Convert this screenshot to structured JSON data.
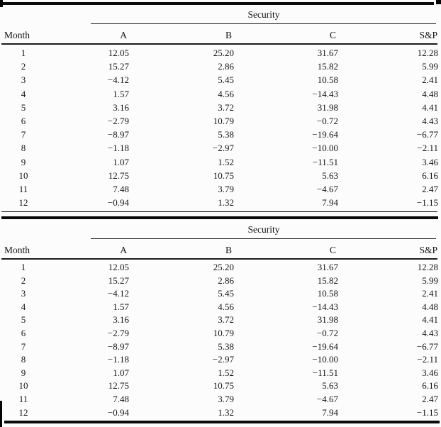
{
  "page": {
    "background": "#fcfcfc",
    "text_color": "#141414",
    "rule_color": "#0a0a0a"
  },
  "tables": [
    {
      "group_header": "Security",
      "columns": [
        "Month",
        "A",
        "B",
        "C",
        "S&P"
      ],
      "rows": [
        [
          "1",
          "12.05",
          "25.20",
          "31.67",
          "12.28"
        ],
        [
          "2",
          "15.27",
          "2.86",
          "15.82",
          "5.99"
        ],
        [
          "3",
          "−4.12",
          "5.45",
          "10.58",
          "2.41"
        ],
        [
          "4",
          "1.57",
          "4.56",
          "−14.43",
          "4.48"
        ],
        [
          "5",
          "3.16",
          "3.72",
          "31.98",
          "4.41"
        ],
        [
          "6",
          "−2.79",
          "10.79",
          "−0.72",
          "4.43"
        ],
        [
          "7",
          "−8.97",
          "5.38",
          "−19.64",
          "−6.77"
        ],
        [
          "8",
          "−1.18",
          "−2.97",
          "−10.00",
          "−2.11"
        ],
        [
          "9",
          "1.07",
          "1.52",
          "−11.51",
          "3.46"
        ],
        [
          "10",
          "12.75",
          "10.75",
          "5.63",
          "6.16"
        ],
        [
          "11",
          "7.48",
          "3.79",
          "−4.67",
          "2.47"
        ],
        [
          "12",
          "−0.94",
          "1.32",
          "7.94",
          "−1.15"
        ]
      ]
    },
    {
      "group_header": "Security",
      "columns": [
        "Month",
        "A",
        "B",
        "C",
        "S&P"
      ],
      "rows": [
        [
          "1",
          "12.05",
          "25.20",
          "31.67",
          "12.28"
        ],
        [
          "2",
          "15.27",
          "2.86",
          "15.82",
          "5.99"
        ],
        [
          "3",
          "−4.12",
          "5.45",
          "10.58",
          "2.41"
        ],
        [
          "4",
          "1.57",
          "4.56",
          "−14.43",
          "4.48"
        ],
        [
          "5",
          "3.16",
          "3.72",
          "31.98",
          "4.41"
        ],
        [
          "6",
          "−2.79",
          "10.79",
          "−0.72",
          "4.43"
        ],
        [
          "7",
          "−8.97",
          "5.38",
          "−19.64",
          "−6.77"
        ],
        [
          "8",
          "−1.18",
          "−2.97",
          "−10.00",
          "−2.11"
        ],
        [
          "9",
          "1.07",
          "1.52",
          "−11.51",
          "3.46"
        ],
        [
          "10",
          "12.75",
          "10.75",
          "5.63",
          "6.16"
        ],
        [
          "11",
          "7.48",
          "3.79",
          "−4.67",
          "2.47"
        ],
        [
          "12",
          "−0.94",
          "1.32",
          "7.94",
          "−1.15"
        ]
      ]
    }
  ]
}
